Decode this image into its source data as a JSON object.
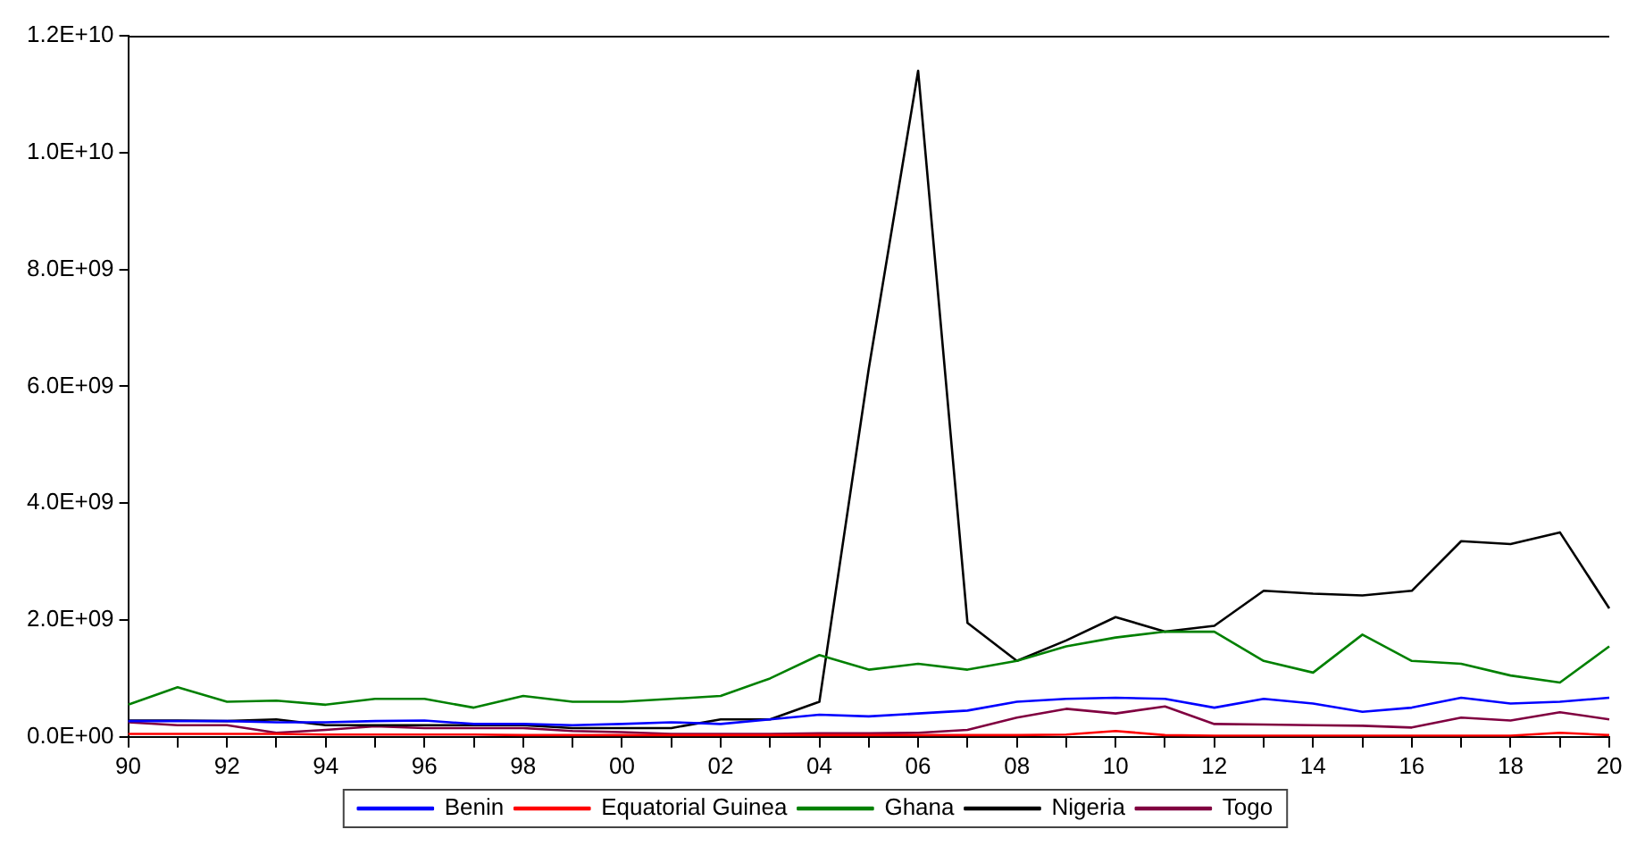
{
  "chart_data": {
    "type": "line",
    "categories": [
      "90",
      null,
      "92",
      null,
      "94",
      null,
      "96",
      null,
      "98",
      null,
      "00",
      null,
      "02",
      null,
      "04",
      null,
      "06",
      null,
      "08",
      null,
      "10",
      null,
      "12",
      null,
      "14",
      null,
      "16",
      null,
      "18",
      null,
      "20"
    ],
    "ylim": [
      0,
      12000000000
    ],
    "yticks": [
      {
        "value": 0,
        "label": "0.0E+00"
      },
      {
        "value": 2000000000,
        "label": "2.0E+09"
      },
      {
        "value": 4000000000,
        "label": "4.0E+09"
      },
      {
        "value": 6000000000,
        "label": "6.0E+09"
      },
      {
        "value": 8000000000,
        "label": "8.0E+09"
      },
      {
        "value": 10000000000,
        "label": "1.0E+10"
      },
      {
        "value": 12000000000,
        "label": "1.2E+10"
      }
    ],
    "grid": false,
    "legend": "bottom",
    "marker": "none",
    "line_style": "solid",
    "series": [
      {
        "name": "Benin",
        "color": "#0000ff",
        "values": [
          270000000,
          270000000,
          270000000,
          250000000,
          250000000,
          270000000,
          280000000,
          220000000,
          220000000,
          200000000,
          220000000,
          250000000,
          220000000,
          300000000,
          380000000,
          350000000,
          400000000,
          450000000,
          600000000,
          650000000,
          670000000,
          650000000,
          500000000,
          650000000,
          570000000,
          430000000,
          500000000,
          670000000,
          570000000,
          600000000,
          670000000
        ]
      },
      {
        "name": "Equatorial Guinea",
        "color": "#ff0000",
        "values": [
          50000000,
          50000000,
          50000000,
          50000000,
          40000000,
          40000000,
          40000000,
          40000000,
          30000000,
          30000000,
          30000000,
          30000000,
          30000000,
          30000000,
          30000000,
          30000000,
          30000000,
          30000000,
          30000000,
          40000000,
          100000000,
          30000000,
          20000000,
          20000000,
          20000000,
          20000000,
          20000000,
          20000000,
          20000000,
          70000000,
          30000000
        ]
      },
      {
        "name": "Ghana",
        "color": "#008000",
        "values": [
          550000000,
          850000000,
          600000000,
          620000000,
          550000000,
          650000000,
          650000000,
          500000000,
          700000000,
          600000000,
          600000000,
          650000000,
          700000000,
          1000000000,
          1400000000,
          1150000000,
          1250000000,
          1150000000,
          1300000000,
          1550000000,
          1700000000,
          1800000000,
          1800000000,
          1300000000,
          1100000000,
          1750000000,
          1300000000,
          1250000000,
          1050000000,
          930000000,
          1550000000
        ]
      },
      {
        "name": "Nigeria",
        "color": "#000000",
        "values": [
          280000000,
          280000000,
          270000000,
          300000000,
          200000000,
          200000000,
          200000000,
          200000000,
          200000000,
          150000000,
          150000000,
          150000000,
          300000000,
          300000000,
          600000000,
          6300000000,
          11400000000,
          1950000000,
          1300000000,
          1650000000,
          2050000000,
          1800000000,
          1900000000,
          2500000000,
          2450000000,
          2420000000,
          2500000000,
          3350000000,
          3300000000,
          3500000000,
          2200000000
        ]
      },
      {
        "name": "Togo",
        "color": "#800040",
        "values": [
          250000000,
          200000000,
          200000000,
          70000000,
          120000000,
          180000000,
          150000000,
          150000000,
          150000000,
          100000000,
          80000000,
          50000000,
          50000000,
          50000000,
          60000000,
          60000000,
          70000000,
          120000000,
          330000000,
          480000000,
          400000000,
          520000000,
          220000000,
          210000000,
          200000000,
          190000000,
          160000000,
          330000000,
          280000000,
          420000000,
          300000000
        ]
      }
    ]
  }
}
